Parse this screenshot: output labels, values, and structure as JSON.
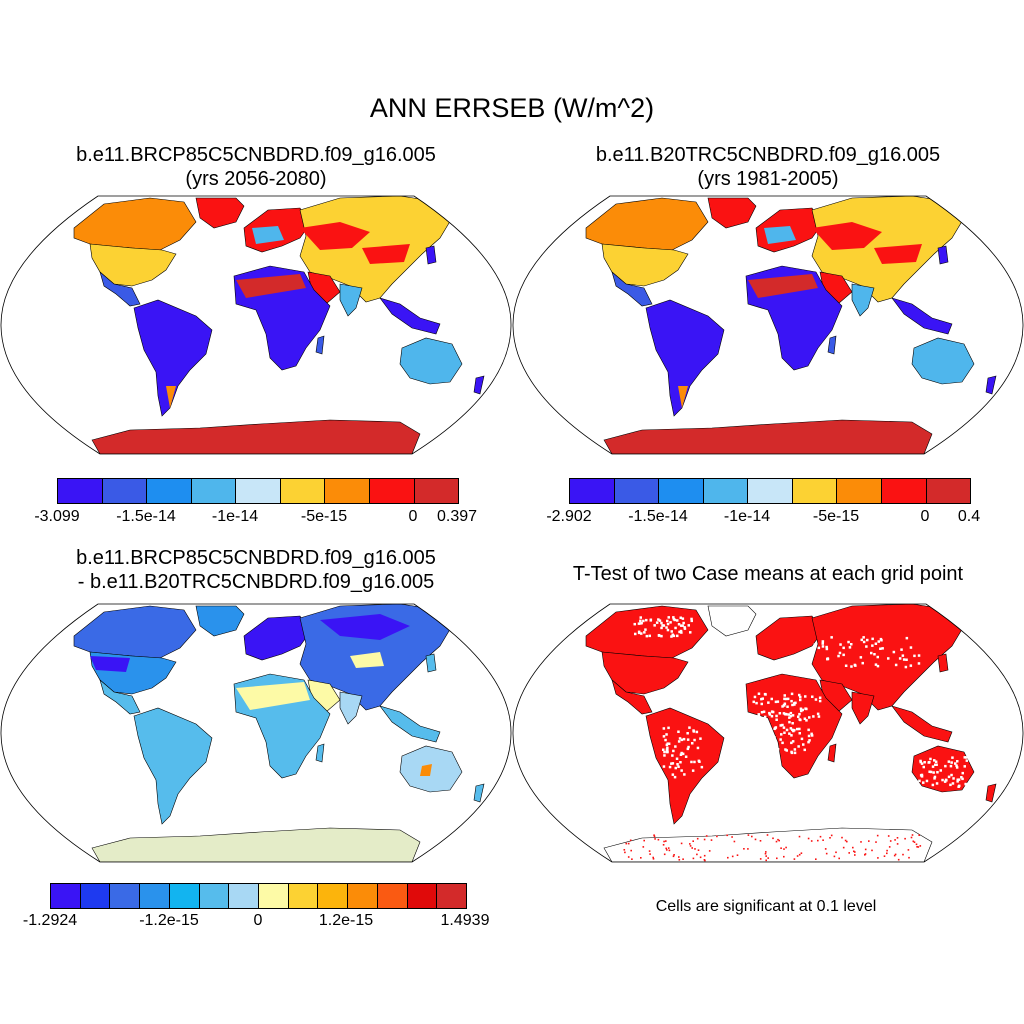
{
  "title": "ANN ERRSEB (W/m^2)",
  "panels": [
    {
      "title_line1": "b.e11.BRCP85C5CNBDRD.f09_g16.005",
      "title_line2": "(yrs 2056-2080)",
      "colorbar": {
        "colors": [
          "#3a14f5",
          "#3a5ae6",
          "#1e8ef0",
          "#4fb6ec",
          "#c8e6f8",
          "#fcd233",
          "#fb8c08",
          "#fa1212",
          "#d32a2a"
        ],
        "labels": [
          "-3.099",
          "-1.5e-14",
          "-1e-14",
          "-5e-15",
          "0",
          "0.397"
        ]
      }
    },
    {
      "title_line1": "b.e11.B20TRC5CNBDRD.f09_g16.005",
      "title_line2": "(yrs 1981-2005)",
      "colorbar": {
        "colors": [
          "#3a14f5",
          "#3a5ae6",
          "#1e8ef0",
          "#4fb6ec",
          "#c8e6f8",
          "#fcd233",
          "#fb8c08",
          "#fa1212",
          "#d32a2a"
        ],
        "labels": [
          "-2.902",
          "-1.5e-14",
          "-1e-14",
          "-5e-15",
          "0",
          "0.4"
        ]
      }
    },
    {
      "title_line1": "b.e11.BRCP85C5CNBDRD.f09_g16.005",
      "title_line2": "- b.e11.B20TRC5CNBDRD.f09_g16.005",
      "colorbar": {
        "colors": [
          "#3a14f5",
          "#1e3af0",
          "#3a6ae6",
          "#2a92ec",
          "#12b4f0",
          "#56bcec",
          "#a8d8f4",
          "#fdfaa6",
          "#fcd233",
          "#fcb40c",
          "#fb8c08",
          "#fa5a12",
          "#e00a0a",
          "#d32a2a"
        ],
        "labels": [
          "-1.2924",
          "-1.2e-15",
          "0",
          "1.2e-15",
          "1.4939"
        ]
      }
    },
    {
      "title_line1": "T-Test of two Case means at each grid point",
      "footnote": "Cells are significant at 0.1 level"
    }
  ]
}
